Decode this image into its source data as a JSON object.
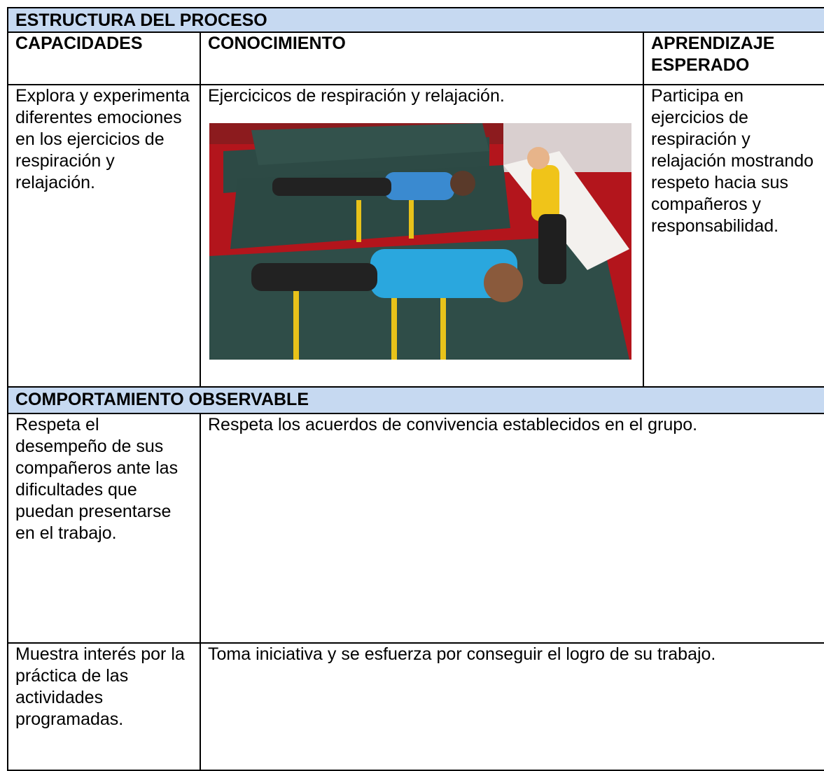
{
  "header": {
    "title": "ESTRUCTURA DEL PROCESO"
  },
  "table": {
    "columns": [
      "CAPACIDADES",
      "CONOCIMIENTO",
      "APRENDIZAJE ESPERADO"
    ],
    "rows": [
      [
        "Explora y experimenta diferentes emociones en los ejercicios de respiración y relajación.",
        "Ejercicicos de respiración y relajación.",
        "Participa en ejercicios de respiración y relajación mostrando respeto hacia sus compañeros y responsabilidad."
      ]
    ]
  },
  "behavior": {
    "title": "COMPORTAMIENTO OBSERVABLE",
    "rows": [
      [
        "Respeta el desempeño de sus compañeros ante las dificultades que puedan presentarse en el trabajo.",
        "Respeta los acuerdos de convivencia establecidos en el grupo."
      ],
      [
        "Muestra interés por la práctica de las actividades programadas.",
        "Toma iniciativa y se esfuerza por conseguir el logro de su trabajo."
      ]
    ]
  }
}
